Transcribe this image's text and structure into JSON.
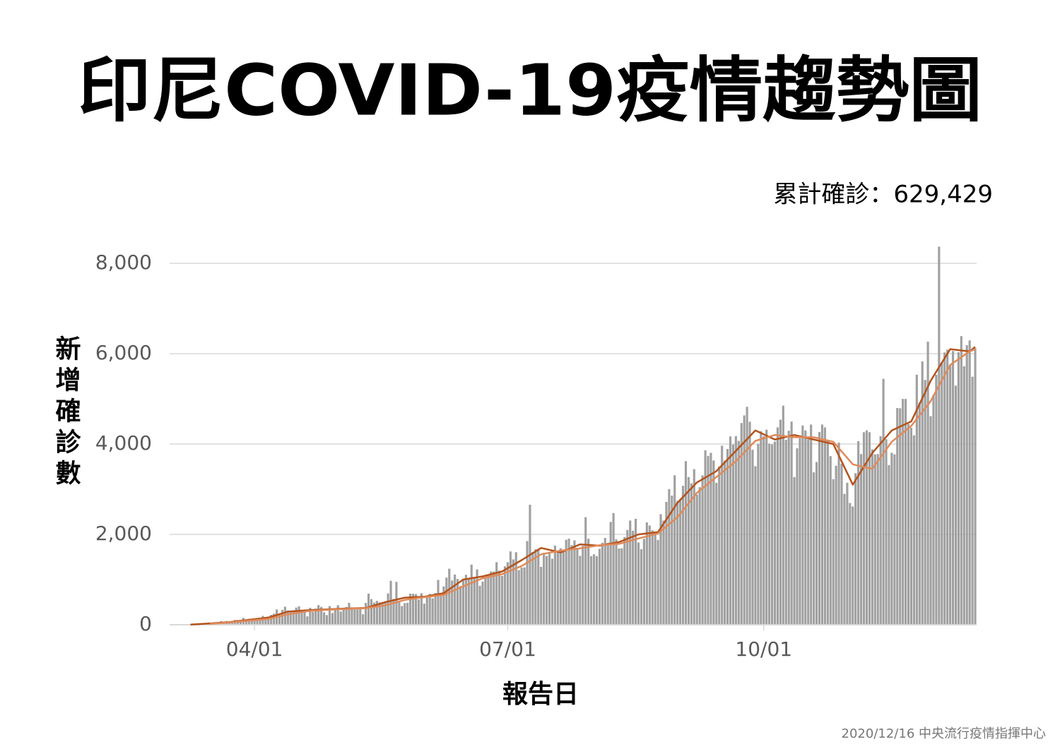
{
  "chart_data": {
    "type": "bar",
    "title": "印尼COVID-19疫情趨勢圖",
    "annotation": "累計確診：629,429",
    "ylabel": "新增確診數",
    "xlabel": "報告日",
    "footer": "2020/12/16 中央流行疫情指揮中心",
    "color": "#a0a0a0",
    "grid": true,
    "ylim": [
      0,
      8000
    ],
    "yticks": [
      0,
      {
        "value": 2000,
        "label": "2,000"
      },
      {
        "value": 4000,
        "label": "4,000"
      },
      {
        "value": 6000,
        "label": "6,000"
      },
      {
        "value": 8000,
        "label": "8,000"
      }
    ],
    "xticks": [
      "04/01",
      "07/01",
      "10/01"
    ],
    "x": [
      "03/02",
      "03/03",
      "03/04",
      "03/05",
      "03/06",
      "03/07",
      "03/08",
      "03/09",
      "03/10",
      "03/11",
      "03/12",
      "03/13",
      "03/14",
      "03/15",
      "03/16",
      "03/17",
      "03/18",
      "03/19",
      "03/20",
      "03/21",
      "03/22",
      "03/23",
      "03/24",
      "03/25",
      "03/26",
      "03/27",
      "03/28",
      "03/29",
      "03/30",
      "03/31",
      "04/01",
      "04/02",
      "04/03",
      "04/04",
      "04/05",
      "04/06",
      "04/07",
      "04/08",
      "04/09",
      "04/10",
      "04/11",
      "04/12",
      "04/13",
      "04/14",
      "04/15",
      "04/16",
      "04/17",
      "04/18",
      "04/19",
      "04/20",
      "04/21",
      "04/22",
      "04/23",
      "04/24",
      "04/25",
      "04/26",
      "04/27",
      "04/28",
      "04/29",
      "04/30",
      "05/01",
      "05/02",
      "05/03",
      "05/04",
      "05/05",
      "05/06",
      "05/07",
      "05/08",
      "05/09",
      "05/10",
      "05/11",
      "05/12",
      "05/13",
      "05/14",
      "05/15",
      "05/16",
      "05/17",
      "05/18",
      "05/19",
      "05/20",
      "05/21",
      "05/22",
      "05/23",
      "05/24",
      "05/25",
      "05/26",
      "05/27",
      "05/28",
      "05/29",
      "05/30",
      "05/31",
      "06/01",
      "06/02",
      "06/03",
      "06/04",
      "06/05",
      "06/06",
      "06/07",
      "06/08",
      "06/09",
      "06/10",
      "06/11",
      "06/12",
      "06/13",
      "06/14",
      "06/15",
      "06/16",
      "06/17",
      "06/18",
      "06/19",
      "06/20",
      "06/21",
      "06/22",
      "06/23",
      "06/24",
      "06/25",
      "06/26",
      "06/27",
      "06/28",
      "06/29",
      "06/30",
      "07/01",
      "07/02",
      "07/03",
      "07/04",
      "07/05",
      "07/06",
      "07/07",
      "07/08",
      "07/09",
      "07/10",
      "07/11",
      "07/12",
      "07/13",
      "07/14",
      "07/15",
      "07/16",
      "07/17",
      "07/18",
      "07/19",
      "07/20",
      "07/21",
      "07/22",
      "07/23",
      "07/24",
      "07/25",
      "07/26",
      "07/27",
      "07/28",
      "07/29",
      "07/30",
      "07/31",
      "08/01",
      "08/02",
      "08/03",
      "08/04",
      "08/05",
      "08/06",
      "08/07",
      "08/08",
      "08/09",
      "08/10",
      "08/11",
      "08/12",
      "08/13",
      "08/14",
      "08/15",
      "08/16",
      "08/17",
      "08/18",
      "08/19",
      "08/20",
      "08/21",
      "08/22",
      "08/23",
      "08/24",
      "08/25",
      "08/26",
      "08/27",
      "08/28",
      "08/29",
      "08/30",
      "08/31",
      "09/01",
      "09/02",
      "09/03",
      "09/04",
      "09/05",
      "09/06",
      "09/07",
      "09/08",
      "09/09",
      "09/10",
      "09/11",
      "09/12",
      "09/13",
      "09/14",
      "09/15",
      "09/16",
      "09/17",
      "09/18",
      "09/19",
      "09/20",
      "09/21",
      "09/22",
      "09/23",
      "09/24",
      "09/25",
      "09/26",
      "09/27",
      "09/28",
      "09/29",
      "09/30",
      "10/01",
      "10/02",
      "10/03",
      "10/04",
      "10/05",
      "10/06",
      "10/07",
      "10/08",
      "10/09",
      "10/10",
      "10/11",
      "10/12",
      "10/13",
      "10/14",
      "10/15",
      "10/16",
      "10/17",
      "10/18",
      "10/19",
      "10/20",
      "10/21",
      "10/22",
      "10/23",
      "10/24",
      "10/25",
      "10/26",
      "10/27",
      "10/28",
      "10/29",
      "10/30",
      "10/31",
      "11/01",
      "11/02",
      "11/03",
      "11/04",
      "11/05",
      "11/06",
      "11/07",
      "11/08",
      "11/09",
      "11/10",
      "11/11",
      "11/12",
      "11/13",
      "11/14",
      "11/15",
      "11/16",
      "11/17",
      "11/18",
      "11/19",
      "11/20",
      "11/21",
      "11/22",
      "11/23",
      "11/24",
      "11/25",
      "11/26",
      "11/27",
      "11/28",
      "11/29",
      "11/30",
      "12/01",
      "12/02",
      "12/03",
      "12/04",
      "12/05",
      "12/06",
      "12/07",
      "12/08",
      "12/09",
      "12/10",
      "12/11",
      "12/12",
      "12/13",
      "12/14",
      "12/15",
      "12/16"
    ],
    "values": [
      2,
      0,
      0,
      0,
      0,
      2,
      0,
      2,
      8,
      0,
      15,
      7,
      35,
      27,
      21,
      17,
      38,
      55,
      82,
      60,
      81,
      64,
      65,
      106,
      105,
      103,
      153,
      109,
      130,
      129,
      114,
      149,
      113,
      196,
      106,
      181,
      218,
      247,
      337,
      219,
      330,
      399,
      316,
      282,
      297,
      380,
      407,
      325,
      327,
      185,
      375,
      283,
      357,
      436,
      396,
      275,
      214,
      415,
      260,
      347,
      433,
      292,
      349,
      395,
      484,
      367,
      338,
      336,
      387,
      233,
      484,
      689,
      568,
      490,
      529,
      496,
      489,
      486,
      693,
      973,
      570,
      949,
      526,
      415,
      479,
      486,
      687,
      686,
      678,
      557,
      700,
      467,
      609,
      684,
      585,
      703,
      993,
      672,
      847,
      1043,
      1241,
      979,
      1111,
      1014,
      857,
      1017,
      1106,
      1031,
      1331,
      1041,
      1226,
      862,
      954,
      1051,
      1113,
      1178,
      1178,
      1385,
      1198,
      1082,
      1293,
      1385,
      1624,
      1447,
      1607,
      1209,
      1268,
      1268,
      1853,
      2657,
      1611,
      1671,
      1681,
      1282,
      1591,
      1522,
      1574,
      1462,
      1752,
      1639,
      1693,
      1655,
      1882,
      1906,
      1761,
      1868,
      1703,
      1525,
      1748,
      2381,
      1904,
      1519,
      1560,
      1519,
      1679,
      1815,
      1922,
      1815,
      2277,
      2473,
      1893,
      1687,
      1693,
      1942,
      2098,
      2307,
      2081,
      2345,
      1821,
      1673,
      1902,
      2266,
      2197,
      2090,
      2037,
      1877,
      2447,
      2306,
      2719,
      3003,
      2858,
      3308,
      2743,
      2775,
      3075,
      3622,
      3269,
      3128,
      3444,
      2880,
      3046,
      3307,
      3861,
      3737,
      3806,
      3636,
      3141,
      3507,
      3963,
      3635,
      3891,
      4168,
      3989,
      4176,
      4071,
      4465,
      4634,
      4823,
      4494,
      3874,
      3509,
      4002,
      4284,
      4174,
      4317,
      4007,
      3992,
      4056,
      4369,
      4538,
      4850,
      4094,
      4294,
      4497,
      3267,
      3906,
      4127,
      4411,
      4301,
      4105,
      4432,
      3373,
      3602,
      4267,
      4432,
      4369,
      4070,
      3732,
      3222,
      3520,
      4029,
      3565,
      2897,
      3143,
      2696,
      2618,
      3356,
      4065,
      3778,
      4262,
      4303,
      4262,
      3880,
      3770,
      3779,
      4173,
      5444,
      4106,
      3535,
      3807,
      3771,
      4798,
      4792,
      4998,
      4998,
      4442,
      4360,
      4192,
      5534,
      4917,
      5828,
      5418,
      6267,
      4617,
      5092,
      5533,
      8369,
      5803,
      6027,
      6089,
      5754,
      6058,
      5292,
      6033,
      6388,
      5722,
      6189,
      6293,
      5489,
      6120
    ],
    "lines": [
      {
        "color": "#b5531c",
        "x": [
          "03/09",
          "03/16",
          "03/23",
          "03/30",
          "04/06",
          "04/13",
          "04/20",
          "04/27",
          "05/04",
          "05/11",
          "05/18",
          "05/25",
          "06/01",
          "06/08",
          "06/15",
          "06/22",
          "06/29",
          "07/06",
          "07/13",
          "07/20",
          "07/27",
          "08/03",
          "08/10",
          "08/17",
          "08/24",
          "08/31",
          "09/07",
          "09/14",
          "09/21",
          "09/28",
          "10/05",
          "10/12",
          "10/19",
          "10/26",
          "11/02",
          "11/09",
          "11/16",
          "11/23",
          "11/30",
          "12/07",
          "12/14",
          "12/16"
        ],
        "values": [
          5,
          30,
          60,
          110,
          160,
          290,
          320,
          340,
          360,
          370,
          500,
          600,
          620,
          700,
          1000,
          1070,
          1180,
          1430,
          1700,
          1600,
          1780,
          1750,
          1830,
          2000,
          2050,
          2700,
          3150,
          3400,
          3850,
          4300,
          4100,
          4200,
          4100,
          4000,
          3100,
          3800,
          4300,
          4500,
          5400,
          6100,
          6050,
          6150
        ]
      },
      {
        "color": "#e08a5a",
        "x": [
          "03/16",
          "03/23",
          "03/30",
          "04/06",
          "04/13",
          "04/20",
          "04/27",
          "05/04",
          "05/11",
          "05/18",
          "05/25",
          "06/01",
          "06/08",
          "06/15",
          "06/22",
          "06/29",
          "07/06",
          "07/13",
          "07/20",
          "07/27",
          "08/03",
          "08/10",
          "08/17",
          "08/24",
          "08/31",
          "09/07",
          "09/14",
          "09/21",
          "09/28",
          "10/05",
          "10/12",
          "10/19",
          "10/26",
          "11/02",
          "11/09",
          "11/16",
          "11/23",
          "11/30",
          "12/07",
          "12/14",
          "12/16"
        ],
        "values": [
          20,
          50,
          90,
          130,
          230,
          300,
          330,
          350,
          365,
          430,
          550,
          610,
          660,
          850,
          1030,
          1120,
          1300,
          1560,
          1640,
          1690,
          1760,
          1790,
          1910,
          2020,
          2380,
          2920,
          3270,
          3620,
          4070,
          4200,
          4150,
          4150,
          4050,
          3550,
          3450,
          4050,
          4400,
          4950,
          5750,
          6050,
          6100
        ]
      }
    ]
  }
}
